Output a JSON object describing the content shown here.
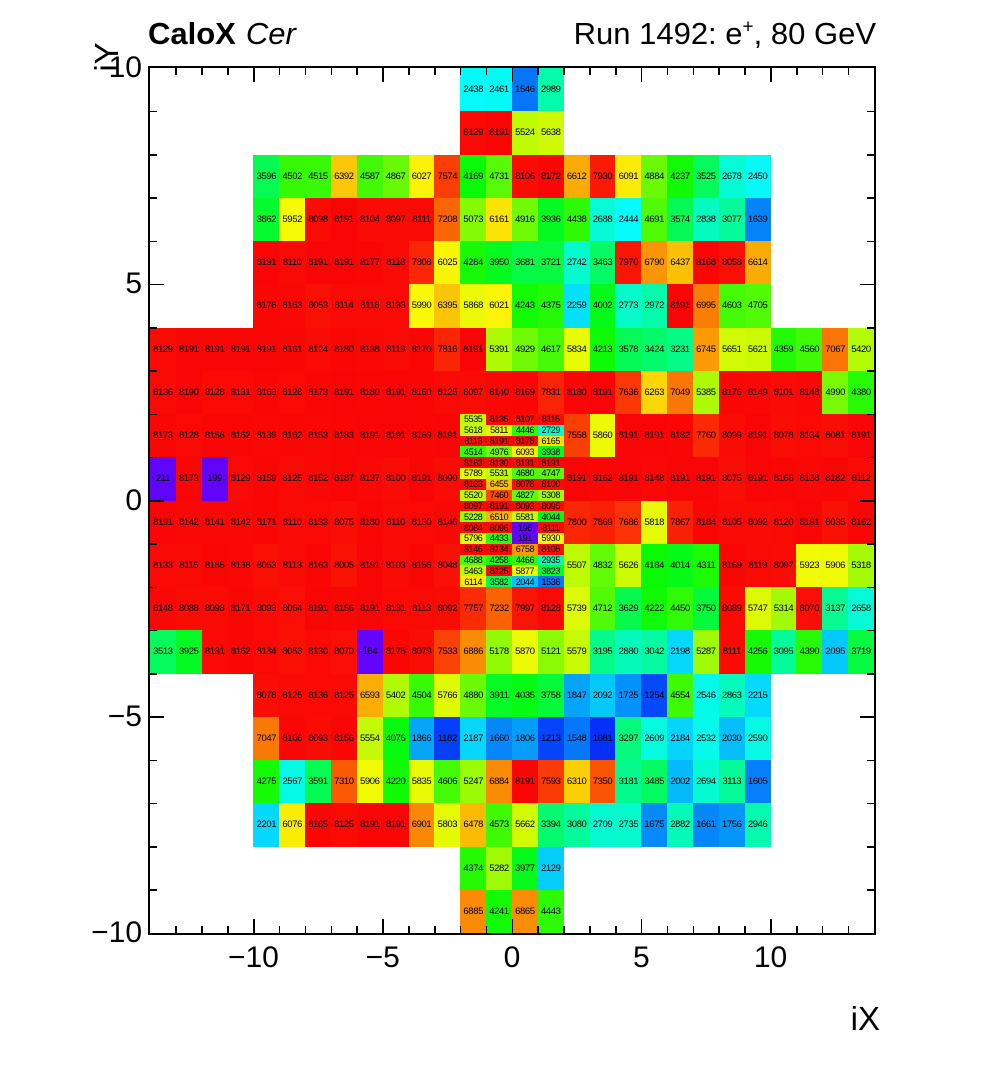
{
  "header": {
    "left_bold": "CaloX",
    "left_italic": "Cer",
    "right_prefix": "Run 1492: e",
    "right_sup": "+",
    "right_suffix": ", 80 GeV"
  },
  "axes": {
    "x_label": "iX",
    "y_label": "iY",
    "x_range": [
      -14,
      14
    ],
    "y_range": [
      -10,
      10
    ],
    "x_ticks": [
      {
        "v": -10,
        "label": "−10"
      },
      {
        "v": -5,
        "label": "−5"
      },
      {
        "v": 0,
        "label": "0"
      },
      {
        "v": 5,
        "label": "5"
      },
      {
        "v": 10,
        "label": "10"
      }
    ],
    "y_ticks": [
      {
        "v": 10,
        "label": "10"
      },
      {
        "v": 5,
        "label": "5"
      },
      {
        "v": 0,
        "label": "0"
      },
      {
        "v": -5,
        "label": "−5"
      },
      {
        "v": -10,
        "label": "−10"
      }
    ],
    "minor_step": 1,
    "major_step": 5,
    "grid": false
  },
  "chart_data": {
    "type": "heatmap",
    "title": "CaloX Cer — Run 1492: e+, 80 GeV",
    "xlabel": "iX",
    "ylabel": "iY",
    "z_min": 0,
    "z_max": 8191,
    "palette": {
      "style": "rainbow",
      "low_color_hint": "#6a1fe0",
      "high_color_hint": "#f20c09"
    },
    "coarse_rows": [
      {
        "iy_top": 10,
        "ix_start": -2,
        "values": [
          2438,
          2461,
          1546,
          2989
        ]
      },
      {
        "iy_top": 9,
        "ix_start": -2,
        "values": [
          8129,
          8191,
          5524,
          5638
        ]
      },
      {
        "iy_top": 8,
        "ix_start": -10,
        "values": [
          3596,
          4502,
          4515,
          6392,
          4587,
          4867,
          6027,
          7574,
          4169,
          4731,
          8106,
          8172,
          6612,
          7930,
          6091,
          4884,
          4237,
          3525,
          2678,
          2450
        ]
      },
      {
        "iy_top": 7,
        "ix_start": -10,
        "values": [
          3862,
          5952,
          8098,
          8191,
          8104,
          8097,
          8111,
          7208,
          5073,
          6161,
          4916,
          3936,
          4438,
          2688,
          2444,
          4691,
          3574,
          2838,
          3077,
          1639
        ]
      },
      {
        "iy_top": 6,
        "ix_start": -10,
        "values": [
          8191,
          8110,
          8191,
          8191,
          8177,
          8118,
          7808,
          6025,
          4284,
          3950,
          3681,
          3721,
          2742,
          3463,
          7970,
          6790,
          6437,
          8168,
          8058,
          6614
        ]
      },
      {
        "iy_top": 5,
        "ix_start": -10,
        "values": [
          8176,
          8153,
          8053,
          8114,
          8118,
          8133,
          5990,
          6395,
          5868,
          6021,
          4243,
          4375,
          2259,
          4002,
          2773,
          2972,
          8191,
          6995,
          4603,
          4705
        ]
      },
      {
        "iy_top": 4,
        "ix_start": -14,
        "values": [
          8129,
          8191,
          8191,
          8191,
          8191,
          8161,
          8124,
          8180,
          8138,
          8119,
          8170,
          7816,
          8191,
          5391,
          4929,
          4617,
          5834,
          4213,
          3578,
          3424,
          3231,
          6745,
          5651,
          5621,
          4359,
          4560,
          7067,
          5420
        ]
      },
      {
        "iy_top": 3,
        "ix_start": -14,
        "values": [
          8136,
          8190,
          8128,
          8131,
          8163,
          8128,
          8173,
          8191,
          8180,
          8191,
          8160,
          8125,
          8097,
          8140,
          8169,
          7831,
          8180,
          8191,
          7636,
          6263,
          7049,
          5385,
          8176,
          8149,
          8101,
          8148,
          4990,
          4380
        ]
      },
      {
        "iy_top": 2,
        "ix_start": -14,
        "values": [
          8173,
          8128,
          8156,
          8162,
          8139,
          8162,
          8153,
          8183,
          8191,
          8191,
          8169,
          8191
        ]
      },
      {
        "iy_top": 2,
        "ix_start": 2,
        "values": [
          7558,
          5860,
          8191,
          8191,
          8182,
          7760,
          8099,
          8191,
          8078,
          8134,
          8081,
          8191
        ]
      },
      {
        "iy_top": 1,
        "ix_start": -14,
        "values": [
          211,
          8173,
          199,
          8129,
          8159,
          8125,
          8152,
          8187,
          8137,
          8100,
          8191,
          8090
        ]
      },
      {
        "iy_top": 1,
        "ix_start": 2,
        "values": [
          8191,
          8162,
          8191,
          8148,
          8191,
          8191,
          8075,
          8191,
          8166,
          8138,
          8182,
          8112
        ]
      },
      {
        "iy_top": 0,
        "ix_start": -14,
        "values": [
          8191,
          8142,
          8141,
          8142,
          8171,
          8110,
          8133,
          8075,
          8180,
          8110,
          8130,
          8146
        ]
      },
      {
        "iy_top": 0,
        "ix_start": 2,
        "values": [
          7800,
          7869,
          7686,
          5818,
          7867,
          8184,
          8105,
          8092,
          8120,
          8191,
          8035,
          8162
        ]
      },
      {
        "iy_top": -1,
        "ix_start": -14,
        "values": [
          8133,
          8115,
          8155,
          8138,
          8053,
          8113,
          8163,
          8005,
          8191,
          8103,
          8156,
          8048
        ]
      },
      {
        "iy_top": -1,
        "ix_start": 2,
        "values": [
          5507,
          4832,
          5626,
          4184,
          4014,
          4311,
          8169,
          8119,
          8097,
          5923,
          5906,
          5318
        ]
      },
      {
        "iy_top": -2,
        "ix_start": -14,
        "values": [
          8148,
          8088,
          8098,
          8171,
          8093,
          8064,
          8191,
          8156,
          8191,
          8131,
          8113,
          8092,
          7757,
          7232,
          7997,
          8128,
          5739,
          4712,
          3629,
          4222,
          4450,
          3750,
          8089,
          5747,
          5314,
          8070,
          3137,
          2658
        ]
      },
      {
        "iy_top": -3,
        "ix_start": -14,
        "values": [
          3513,
          3925,
          8131,
          8162,
          8134,
          8053,
          8130,
          8070,
          184,
          8175,
          8079,
          7533,
          6886,
          5178,
          5870,
          5121,
          5579,
          3195,
          2880,
          3042,
          2198,
          5287,
          8111,
          4256,
          3095,
          4390,
          2095,
          3719
        ]
      },
      {
        "iy_top": -4,
        "ix_start": -10,
        "values": [
          8078,
          8125,
          8136,
          8125,
          6593,
          5402,
          4504,
          5766,
          4880,
          3911,
          4035,
          3758,
          1847,
          2092,
          1725,
          1254,
          4554,
          2546,
          2863,
          2215
        ]
      },
      {
        "iy_top": -5,
        "ix_start": -10,
        "values": [
          7047,
          8166,
          8093,
          8156,
          5554,
          4076,
          1866,
          1182,
          2187,
          1660,
          1806,
          1213,
          1548,
          1081,
          3297,
          2609,
          2184,
          2532,
          2030,
          2590
        ]
      },
      {
        "iy_top": -6,
        "ix_start": -10,
        "values": [
          4275,
          2567,
          3591,
          7310,
          5906,
          4220,
          5835,
          4606,
          5247,
          6884,
          8191,
          7593,
          6310,
          7350,
          3181,
          3485,
          2002,
          2694,
          3113,
          1605
        ]
      },
      {
        "iy_top": -7,
        "ix_start": -10,
        "values": [
          2201,
          6076,
          8165,
          8125,
          8191,
          8191,
          6901,
          5803,
          6478,
          4573,
          5662,
          3394,
          3080,
          2709,
          2735,
          1675,
          2882,
          1661,
          1756,
          2946
        ]
      },
      {
        "iy_top": -8,
        "ix_start": -2,
        "values": [
          4374,
          5282,
          3977,
          2129
        ]
      },
      {
        "iy_top": -9,
        "ix_start": -2,
        "values": [
          6885,
          4241,
          6865,
          4443
        ]
      }
    ],
    "fine_block": {
      "ix_start": -2,
      "iy_top": 2,
      "cols": 4,
      "row_height_units": 0.25,
      "rows": [
        [
          5535,
          8135,
          8107,
          8115
        ],
        [
          5618,
          5811,
          4446,
          2729
        ],
        [
          8113,
          8191,
          8178,
          6165
        ],
        [
          4514,
          4976,
          6093,
          3938
        ],
        [
          8163,
          8130,
          8131,
          8191
        ],
        [
          5789,
          5531,
          4680,
          4747
        ],
        [
          8133,
          6455,
          8078,
          8100
        ],
        [
          5520,
          7460,
          4827,
          5308
        ],
        [
          8097,
          8191,
          8093,
          8095
        ],
        [
          5228,
          6510,
          5581,
          4044
        ],
        [
          8084,
          8096,
          196,
          8111
        ],
        [
          5796,
          4433,
          191,
          5930
        ],
        [
          8146,
          8134,
          6758,
          8105
        ],
        [
          4688,
          4258,
          4466,
          2935
        ],
        [
          5463,
          8125,
          5877,
          3823
        ],
        [
          6114,
          3582,
          2044,
          1536
        ]
      ]
    }
  }
}
